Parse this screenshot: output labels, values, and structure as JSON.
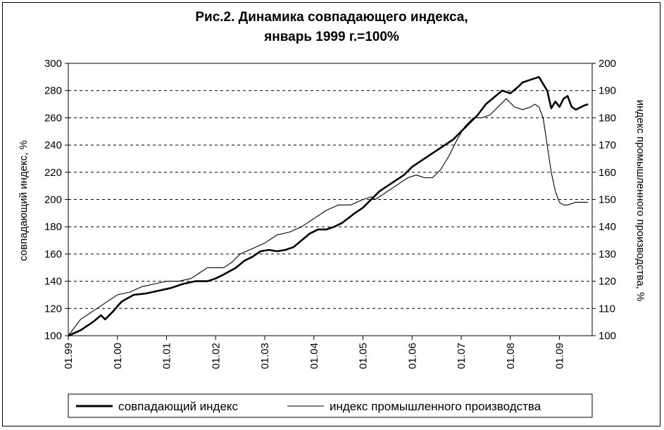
{
  "chart_data": {
    "type": "line",
    "title": "Рис.2. Динамика совпадающего индекса,",
    "subtitle": "январь 1999 г.=100%",
    "ylabel": "совпадающий индекс, %",
    "y2label": "индекс промышленного производства, %",
    "ylim": [
      100,
      300
    ],
    "yticks": [
      100,
      120,
      140,
      160,
      180,
      200,
      220,
      240,
      260,
      280,
      300
    ],
    "y2lim": [
      100,
      200
    ],
    "y2ticks": [
      100,
      110,
      120,
      130,
      140,
      150,
      160,
      170,
      180,
      190,
      200
    ],
    "xlim": [
      0,
      128
    ],
    "xticks": [
      {
        "x": 0,
        "label": "01.99"
      },
      {
        "x": 12,
        "label": "01.00"
      },
      {
        "x": 24,
        "label": "01.01"
      },
      {
        "x": 36,
        "label": "01.02"
      },
      {
        "x": 48,
        "label": "01.03"
      },
      {
        "x": 60,
        "label": "01.04"
      },
      {
        "x": 72,
        "label": "01.05"
      },
      {
        "x": 84,
        "label": "01.06"
      },
      {
        "x": 96,
        "label": "01.07"
      },
      {
        "x": 108,
        "label": "01.08"
      },
      {
        "x": 120,
        "label": "01.09"
      }
    ],
    "grid": "horizontal-dashed",
    "legend_position": "bottom",
    "series": [
      {
        "name": "совпадающий индекс",
        "axis": "left",
        "style": "thick",
        "points": [
          [
            0,
            100
          ],
          [
            3,
            104
          ],
          [
            6,
            110
          ],
          [
            8,
            115
          ],
          [
            9,
            112
          ],
          [
            11,
            118
          ],
          [
            13,
            125
          ],
          [
            16,
            130
          ],
          [
            19,
            131
          ],
          [
            22,
            133
          ],
          [
            25,
            135
          ],
          [
            28,
            138
          ],
          [
            31,
            140
          ],
          [
            34,
            140
          ],
          [
            36,
            142
          ],
          [
            38,
            145
          ],
          [
            41,
            150
          ],
          [
            43,
            155
          ],
          [
            45,
            158
          ],
          [
            47,
            162
          ],
          [
            49,
            163
          ],
          [
            51,
            162
          ],
          [
            53,
            163
          ],
          [
            55,
            165
          ],
          [
            57,
            170
          ],
          [
            59,
            175
          ],
          [
            61,
            178
          ],
          [
            63,
            178
          ],
          [
            65,
            180
          ],
          [
            67,
            183
          ],
          [
            70,
            190
          ],
          [
            72,
            194
          ],
          [
            74,
            200
          ],
          [
            76,
            206
          ],
          [
            78,
            210
          ],
          [
            80,
            214
          ],
          [
            82,
            218
          ],
          [
            84,
            224
          ],
          [
            86,
            228
          ],
          [
            88,
            232
          ],
          [
            90,
            236
          ],
          [
            92,
            240
          ],
          [
            94,
            244
          ],
          [
            96,
            250
          ],
          [
            98,
            256
          ],
          [
            100,
            262
          ],
          [
            102,
            270
          ],
          [
            104,
            275
          ],
          [
            106,
            280
          ],
          [
            108,
            278
          ],
          [
            110,
            283
          ],
          [
            111,
            286
          ],
          [
            113,
            288
          ],
          [
            115,
            290
          ],
          [
            117,
            280
          ],
          [
            118,
            267
          ],
          [
            119,
            272
          ],
          [
            120,
            268
          ],
          [
            121,
            274
          ],
          [
            122,
            276
          ],
          [
            123,
            268
          ],
          [
            124,
            266
          ],
          [
            126,
            269
          ],
          [
            127,
            270
          ]
        ]
      },
      {
        "name": "индекс промышленного производства",
        "axis": "right",
        "style": "thin",
        "points": [
          [
            0,
            100
          ],
          [
            3,
            106
          ],
          [
            6,
            109
          ],
          [
            9,
            112
          ],
          [
            12,
            115
          ],
          [
            15,
            116
          ],
          [
            18,
            118
          ],
          [
            21,
            119
          ],
          [
            24,
            120
          ],
          [
            27,
            120
          ],
          [
            30,
            121
          ],
          [
            32,
            123
          ],
          [
            34,
            125
          ],
          [
            36,
            125
          ],
          [
            38,
            125
          ],
          [
            40,
            127
          ],
          [
            42,
            130
          ],
          [
            45,
            132
          ],
          [
            48,
            134
          ],
          [
            51,
            137
          ],
          [
            54,
            138
          ],
          [
            57,
            140
          ],
          [
            60,
            143
          ],
          [
            63,
            146
          ],
          [
            66,
            148
          ],
          [
            69,
            148
          ],
          [
            72,
            150
          ],
          [
            74,
            151
          ],
          [
            75,
            150
          ],
          [
            77,
            152
          ],
          [
            80,
            155
          ],
          [
            83,
            158
          ],
          [
            85,
            159
          ],
          [
            87,
            158
          ],
          [
            89,
            158
          ],
          [
            91,
            161
          ],
          [
            93,
            166
          ],
          [
            95,
            172
          ],
          [
            97,
            177
          ],
          [
            99,
            180
          ],
          [
            101,
            180
          ],
          [
            103,
            181
          ],
          [
            105,
            184
          ],
          [
            107,
            187
          ],
          [
            109,
            184
          ],
          [
            111,
            183
          ],
          [
            113,
            184
          ],
          [
            114,
            185
          ],
          [
            115,
            184
          ],
          [
            116,
            180
          ],
          [
            117,
            170
          ],
          [
            118,
            160
          ],
          [
            119,
            153
          ],
          [
            120,
            149
          ],
          [
            121,
            148
          ],
          [
            122,
            148
          ],
          [
            124,
            149
          ],
          [
            126,
            149
          ],
          [
            127,
            149
          ]
        ]
      }
    ]
  }
}
